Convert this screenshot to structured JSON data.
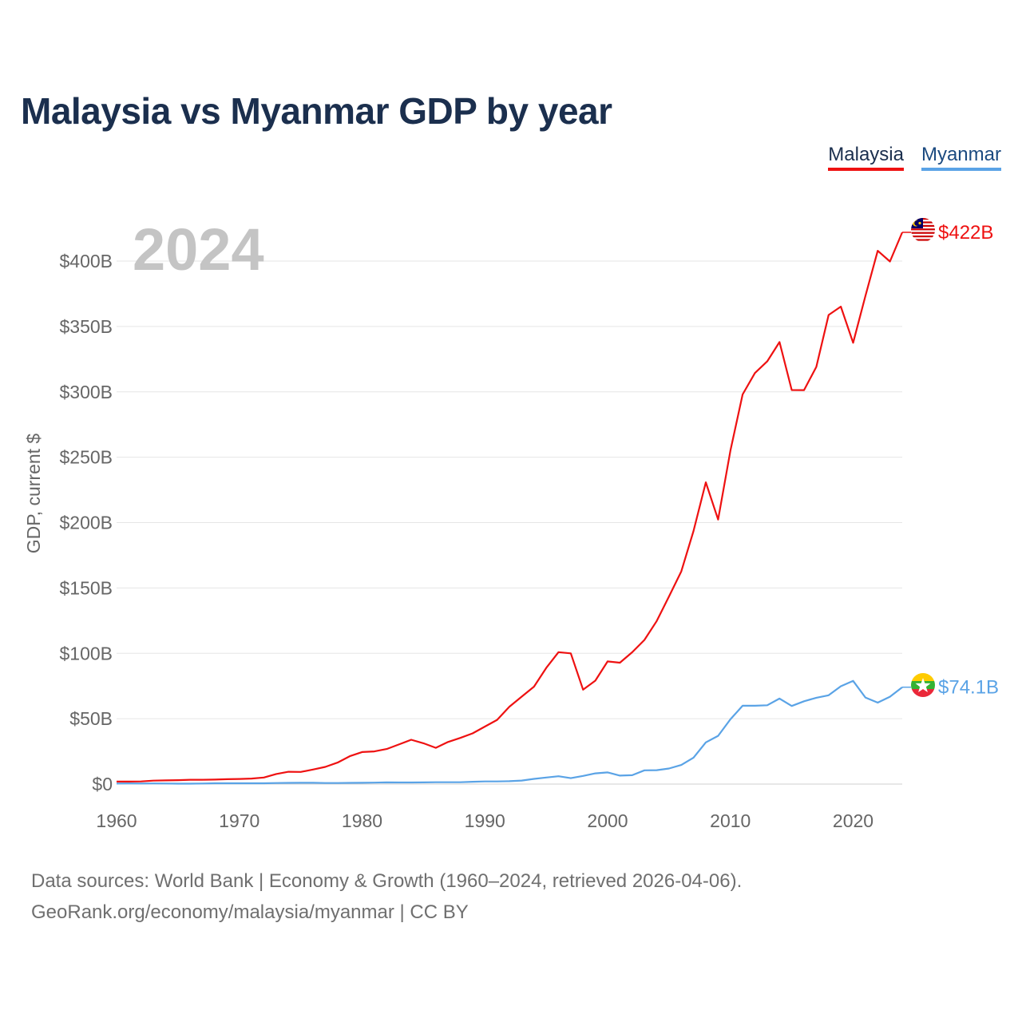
{
  "chart_data": {
    "type": "line",
    "title": "Malaysia vs Myanmar GDP by year",
    "ylabel": "GDP, current $",
    "xlabel": "",
    "year_label": "2024",
    "xlim": [
      1960,
      2024
    ],
    "ylim": [
      0,
      420
    ],
    "x_ticks": [
      1960,
      1970,
      1980,
      1990,
      2000,
      2010,
      2020
    ],
    "y_ticks": [
      0,
      50,
      100,
      150,
      200,
      250,
      300,
      350,
      400
    ],
    "y_tick_labels": [
      "$0",
      "$50B",
      "$100B",
      "$150B",
      "$200B",
      "$250B",
      "$300B",
      "$350B",
      "$400B"
    ],
    "x": [
      1960,
      1961,
      1962,
      1963,
      1964,
      1965,
      1966,
      1967,
      1968,
      1969,
      1970,
      1971,
      1972,
      1973,
      1974,
      1975,
      1976,
      1977,
      1978,
      1979,
      1980,
      1981,
      1982,
      1983,
      1984,
      1985,
      1986,
      1987,
      1988,
      1989,
      1990,
      1991,
      1992,
      1993,
      1994,
      1995,
      1996,
      1997,
      1998,
      1999,
      2000,
      2001,
      2002,
      2003,
      2004,
      2005,
      2006,
      2007,
      2008,
      2009,
      2010,
      2011,
      2012,
      2013,
      2014,
      2015,
      2016,
      2017,
      2018,
      2019,
      2020,
      2021,
      2022,
      2023,
      2024
    ],
    "series": [
      {
        "name": "Malaysia",
        "color": "#ee1111",
        "end_label": "$422B",
        "values": [
          1.9,
          1.9,
          2.0,
          2.6,
          2.8,
          3.0,
          3.3,
          3.3,
          3.4,
          3.7,
          3.9,
          4.2,
          5.0,
          7.7,
          9.4,
          9.3,
          11.1,
          13.1,
          16.4,
          21.3,
          24.5,
          25.0,
          26.8,
          30.3,
          33.9,
          31.2,
          27.7,
          32.2,
          35.3,
          38.8,
          44.0,
          49.1,
          59.2,
          66.9,
          74.5,
          88.8,
          100.9,
          100.0,
          72.2,
          79.1,
          93.8,
          92.8,
          100.8,
          110.2,
          124.7,
          143.5,
          162.7,
          193.6,
          230.8,
          202.3,
          255.0,
          298.0,
          314.4,
          323.3,
          338.1,
          301.4,
          301.3,
          319.1,
          358.8,
          365.2,
          337.5,
          373.4,
          407.9,
          399.7,
          422.0
        ]
      },
      {
        "name": "Myanmar",
        "color": "#5aa3e6",
        "end_label": "$74.1B",
        "values": [
          0.4,
          0.5,
          0.4,
          0.5,
          0.4,
          0.3,
          0.3,
          0.4,
          0.6,
          0.6,
          0.6,
          0.6,
          0.6,
          0.8,
          0.9,
          1.0,
          1.0,
          0.8,
          0.8,
          0.9,
          1.0,
          1.1,
          1.3,
          1.2,
          1.2,
          1.3,
          1.4,
          1.4,
          1.4,
          1.8,
          2.0,
          2.0,
          2.2,
          2.7,
          4.0,
          5.0,
          6.0,
          4.5,
          6.2,
          8.2,
          8.9,
          6.5,
          6.8,
          10.5,
          10.6,
          11.9,
          14.6,
          20.2,
          31.9,
          36.9,
          49.5,
          59.9,
          59.9,
          60.3,
          65.4,
          59.7,
          63.3,
          66.0,
          67.9,
          74.8,
          78.9,
          66.2,
          62.3,
          66.8,
          74.1
        ]
      }
    ]
  },
  "legend": {
    "malaysia": "Malaysia",
    "myanmar": "Myanmar"
  },
  "footer": {
    "line1": "Data sources: World Bank | Economy & Growth (1960–2024, retrieved 2026-04-06).",
    "line2": "GeoRank.org/economy/malaysia/myanmar | CC BY"
  },
  "icons": {
    "malaysia": "malaysia-flag-icon",
    "myanmar": "myanmar-flag-icon"
  }
}
